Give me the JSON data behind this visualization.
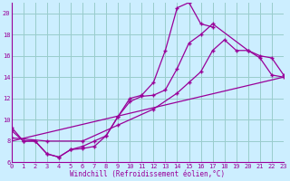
{
  "xlabel": "Windchill (Refroidissement éolien,°C)",
  "bg_color": "#cceeff",
  "grid_color": "#99cccc",
  "line_color": "#990099",
  "xlim": [
    0,
    23
  ],
  "ylim": [
    6,
    21
  ],
  "xticks": [
    0,
    1,
    2,
    3,
    4,
    5,
    6,
    7,
    8,
    9,
    10,
    11,
    12,
    13,
    14,
    15,
    16,
    17,
    18,
    19,
    20,
    21,
    22,
    23
  ],
  "yticks": [
    6,
    8,
    10,
    12,
    14,
    16,
    18,
    20
  ],
  "line1_x": [
    0,
    1,
    2,
    3,
    4,
    5,
    6,
    7,
    8,
    9,
    10,
    11,
    12,
    13,
    14,
    15,
    16,
    17,
    18,
    19,
    20,
    21,
    22,
    23
  ],
  "line1_y": [
    9.3,
    8.0,
    8.0,
    6.8,
    6.5,
    7.2,
    7.3,
    7.5,
    8.5,
    10.3,
    12.0,
    12.3,
    13.5,
    16.5,
    20.5,
    21.0,
    19.0,
    18.7,
    null,
    null,
    null,
    null,
    null,
    null
  ],
  "line2_x": [
    0,
    1,
    2,
    3,
    4,
    5,
    6,
    7,
    8,
    9,
    10,
    11,
    12,
    13,
    14,
    15,
    16,
    17,
    20,
    21,
    22,
    23
  ],
  "line2_y": [
    9.0,
    8.0,
    8.0,
    6.8,
    6.5,
    7.2,
    7.5,
    8.0,
    8.5,
    10.3,
    11.7,
    12.2,
    12.3,
    12.8,
    14.8,
    17.2,
    18.0,
    19.0,
    16.5,
    16.0,
    15.8,
    14.2
  ],
  "line3_x": [
    0,
    3,
    6,
    9,
    12,
    14,
    15,
    16,
    17,
    18,
    19,
    20,
    21,
    22,
    23
  ],
  "line3_y": [
    8.3,
    8.0,
    8.0,
    9.5,
    11.0,
    12.5,
    13.5,
    14.5,
    16.5,
    17.5,
    16.5,
    16.5,
    15.8,
    14.2,
    14.0
  ],
  "line4_x": [
    0,
    23
  ],
  "line4_y": [
    8.0,
    14.0
  ]
}
